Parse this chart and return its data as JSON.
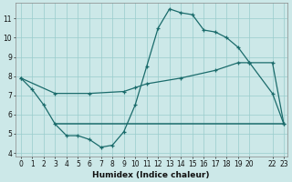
{
  "xlabel": "Humidex (Indice chaleur)",
  "bg_color": "#cce8e8",
  "grid_color": "#99cccc",
  "line_color": "#1a6b6b",
  "line1_x": [
    0,
    1,
    2,
    3,
    4,
    5,
    6,
    7,
    8,
    9,
    10,
    11,
    12,
    13,
    14,
    15,
    16,
    17,
    18,
    19,
    20,
    22,
    23
  ],
  "line1_y": [
    7.9,
    7.3,
    6.5,
    5.5,
    4.9,
    4.9,
    4.7,
    4.3,
    4.4,
    5.1,
    6.5,
    8.5,
    10.5,
    11.5,
    11.3,
    11.2,
    10.4,
    10.3,
    10.0,
    9.5,
    8.7,
    7.1,
    5.5
  ],
  "line2_x": [
    0,
    3,
    6,
    9,
    10,
    11,
    14,
    17,
    19,
    20,
    22,
    23
  ],
  "line2_y": [
    7.9,
    7.1,
    7.1,
    7.2,
    7.4,
    7.6,
    7.9,
    8.3,
    8.7,
    8.7,
    8.7,
    5.5
  ],
  "line3_x": [
    3,
    23
  ],
  "line3_y": [
    5.5,
    5.5
  ],
  "xmin": -0.5,
  "xmax": 23.3,
  "ymin": 3.8,
  "ymax": 11.8,
  "yticks": [
    4,
    5,
    6,
    7,
    8,
    9,
    10,
    11
  ],
  "xticks": [
    0,
    1,
    2,
    3,
    4,
    5,
    6,
    7,
    8,
    9,
    10,
    11,
    12,
    13,
    14,
    15,
    16,
    17,
    18,
    19,
    20,
    22,
    23
  ],
  "xlabel_fontsize": 6.5,
  "tick_fontsize": 5.5
}
